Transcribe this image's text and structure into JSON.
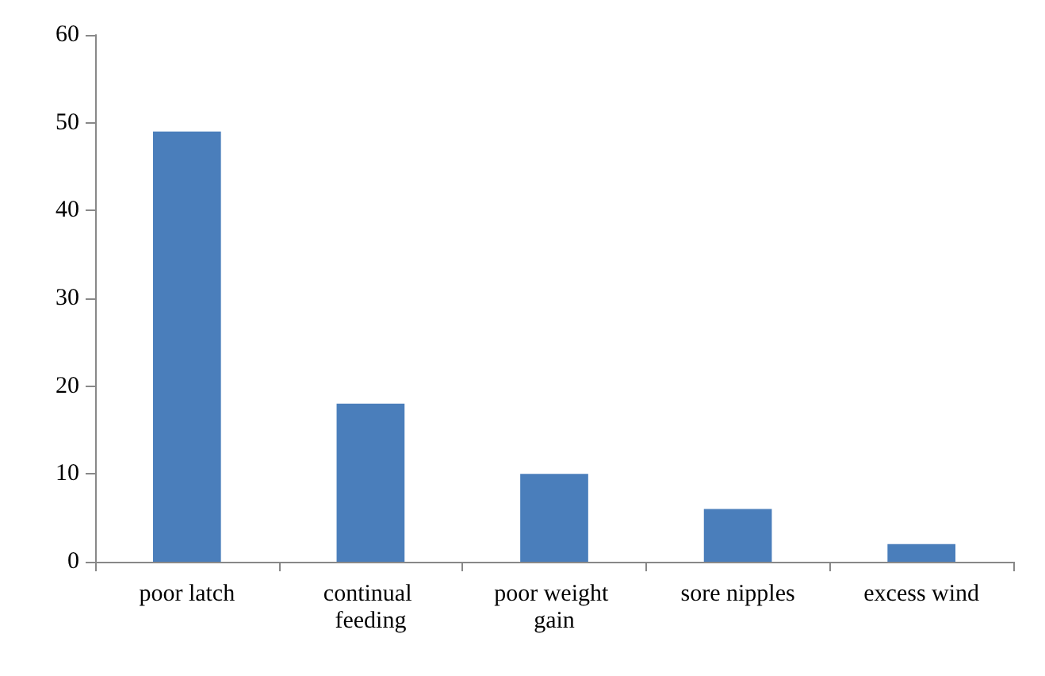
{
  "chart_data": {
    "type": "bar",
    "categories": [
      "poor latch",
      "continual feeding",
      "poor weight gain",
      "sore nipples",
      "excess wind"
    ],
    "values": [
      49,
      18,
      10,
      6,
      2
    ],
    "color": "#4a7ebb",
    "ylim": [
      0,
      60
    ],
    "yticks": [
      0,
      10,
      20,
      30,
      40,
      50,
      60
    ],
    "grid": false
  }
}
